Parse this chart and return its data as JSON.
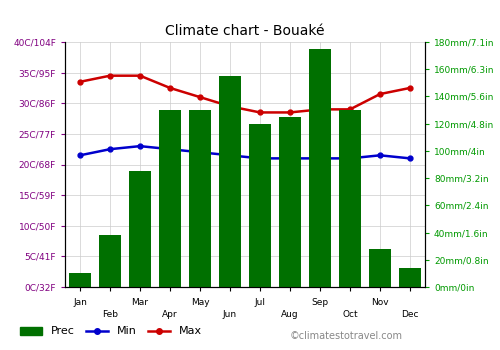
{
  "title": "Climate chart - Bouaké",
  "months_odd": [
    "Jan",
    "Mar",
    "May",
    "Jul",
    "Sep",
    "Nov"
  ],
  "months_even": [
    "Feb",
    "Apr",
    "Jun",
    "Aug",
    "Oct",
    "Dec"
  ],
  "months_all": [
    "Jan",
    "Feb",
    "Mar",
    "Apr",
    "May",
    "Jun",
    "Jul",
    "Aug",
    "Sep",
    "Oct",
    "Nov",
    "Dec"
  ],
  "prec": [
    10,
    38,
    85,
    130,
    130,
    155,
    120,
    125,
    175,
    130,
    28,
    14
  ],
  "temp_min": [
    21.5,
    22.5,
    23.0,
    22.5,
    22.0,
    21.5,
    21.0,
    21.0,
    21.0,
    21.0,
    21.5,
    21.0
  ],
  "temp_max": [
    33.5,
    34.5,
    34.5,
    32.5,
    31.0,
    29.5,
    28.5,
    28.5,
    29.0,
    29.0,
    31.5,
    32.5
  ],
  "bar_color": "#007000",
  "min_color": "#0000cc",
  "max_color": "#cc0000",
  "background_color": "#ffffff",
  "grid_color": "#cccccc",
  "left_tick_color": "#800080",
  "right_tick_color": "#009900",
  "left_yticks_c": [
    0,
    5,
    10,
    15,
    20,
    25,
    30,
    35,
    40
  ],
  "right_yticks_mm": [
    0,
    20,
    40,
    60,
    80,
    100,
    120,
    140,
    160,
    180
  ],
  "left_labels": [
    "0C/32F",
    "5C/41F",
    "10C/50F",
    "15C/59F",
    "20C/68F",
    "25C/77F",
    "30C/86F",
    "35C/95F",
    "40C/104F"
  ],
  "right_labels": [
    "0mm/0in",
    "20mm/0.8in",
    "40mm/1.6in",
    "60mm/2.4in",
    "80mm/3.2in",
    "100mm/4in",
    "120mm/4.8in",
    "140mm/5.6in",
    "160mm/6.3in",
    "180mm/7.1in"
  ],
  "watermark": "©climatestotravel.com",
  "legend_prec": "Prec",
  "legend_min": "Min",
  "legend_max": "Max",
  "fig_width": 5.0,
  "fig_height": 3.5,
  "dpi": 100
}
